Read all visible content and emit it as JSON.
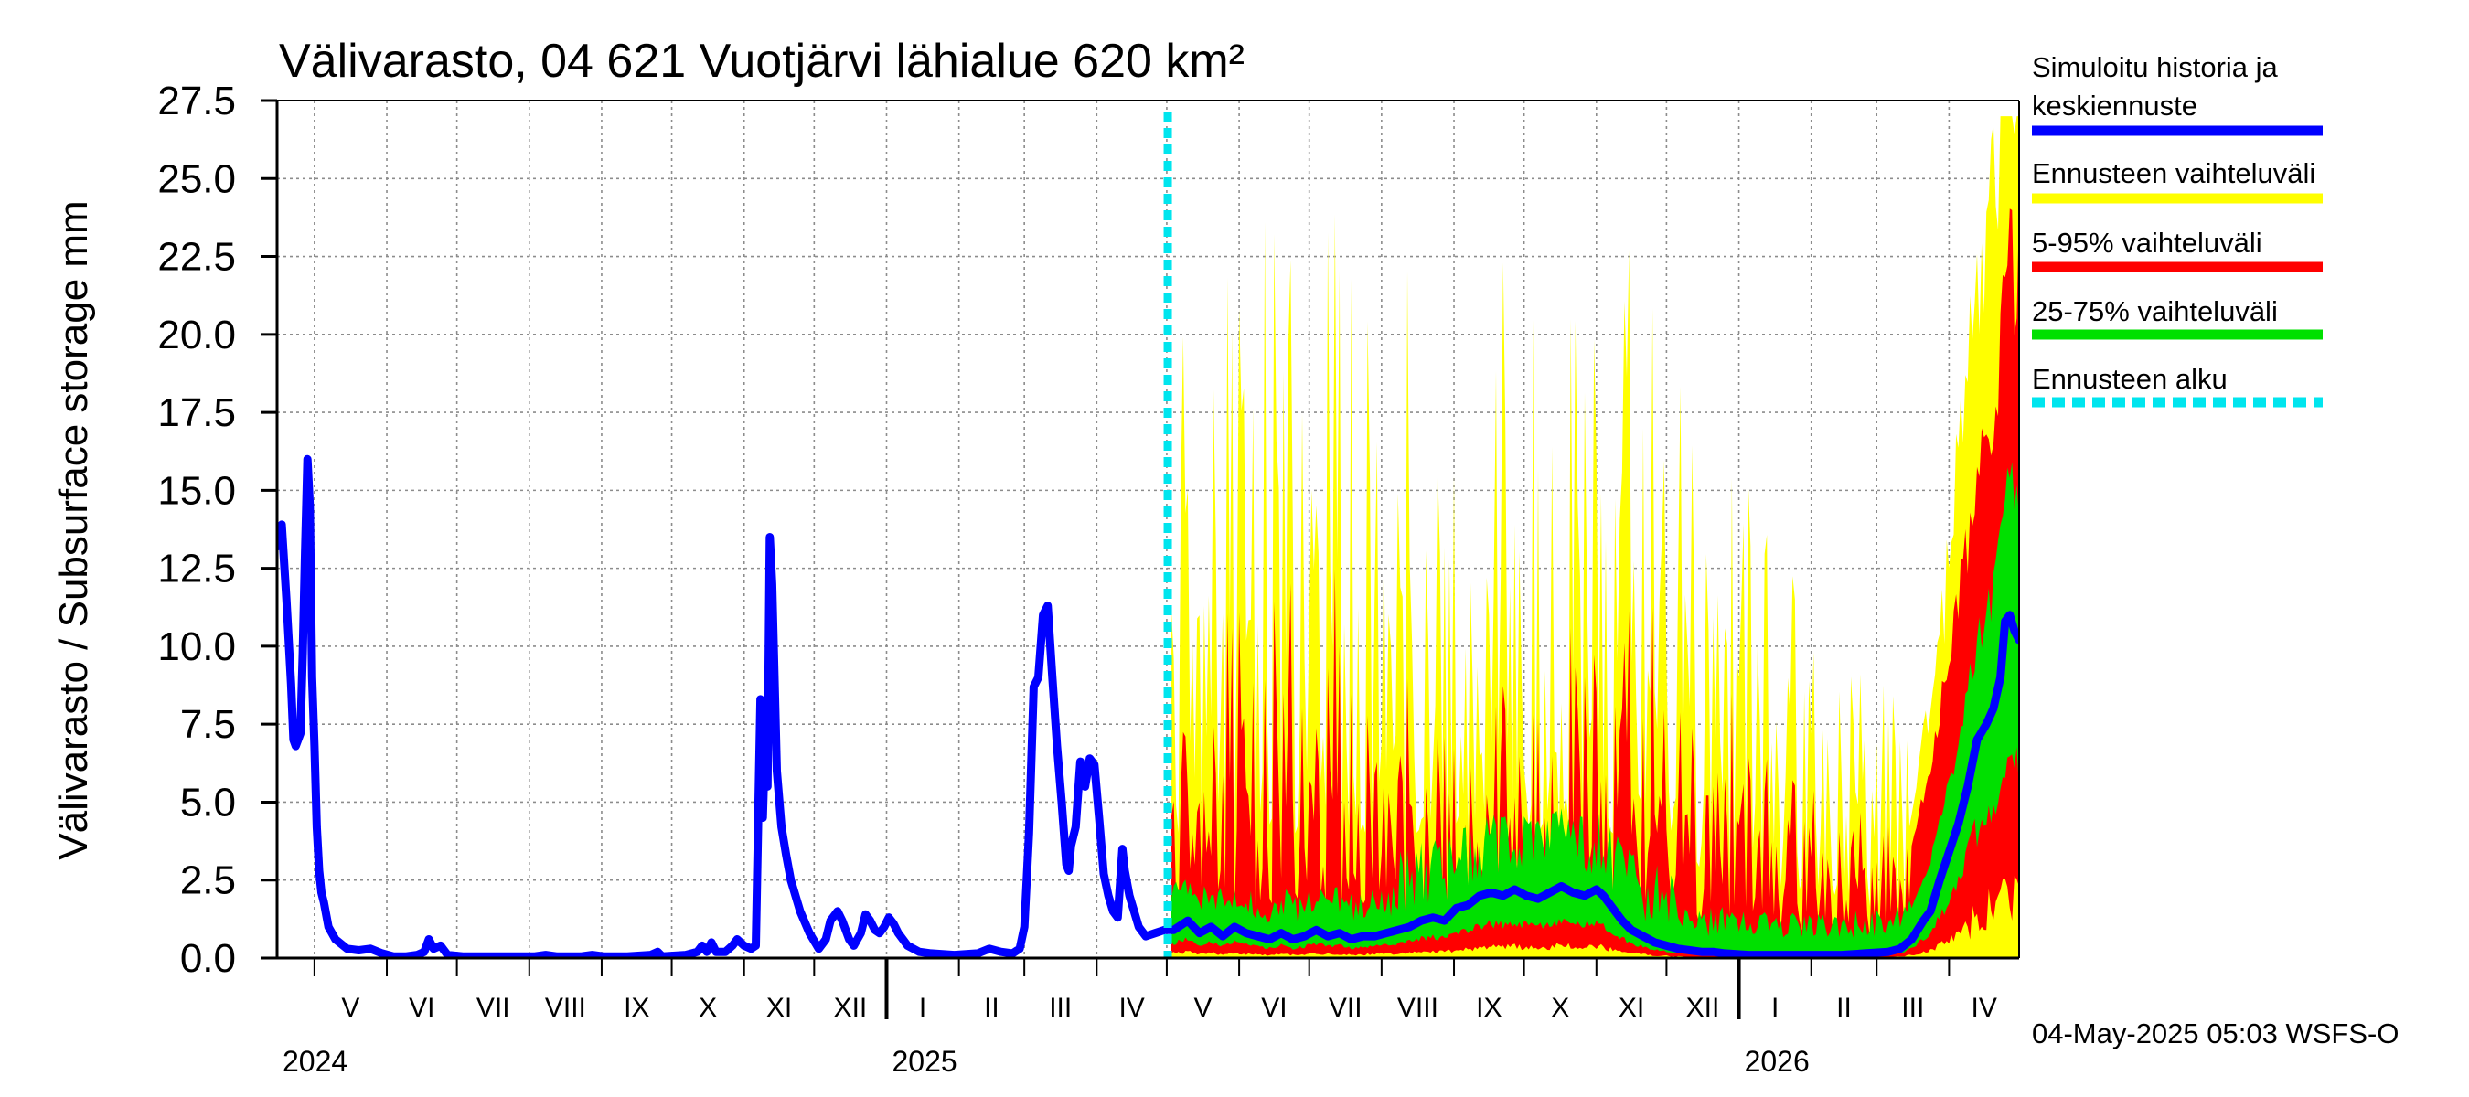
{
  "chart_data": {
    "type": "area",
    "title": "Välivarasto, 04 621 Vuotjärvi lähialue 620 km²",
    "ylabel": "Välivarasto / Subsurface storage  mm",
    "xlabel": "",
    "ylim": [
      0,
      27.5
    ],
    "yticks": [
      "0.0",
      "2.5",
      "5.0",
      "7.5",
      "10.0",
      "12.5",
      "15.0",
      "17.5",
      "20.0",
      "22.5",
      "25.0",
      "27.5"
    ],
    "grid": true,
    "x_start": "2024-04-15",
    "x_end": "2026-05-01",
    "forecast_start_day": 383,
    "months": [
      {
        "label": "V",
        "start": 16,
        "end": 47
      },
      {
        "label": "VI",
        "start": 47,
        "end": 77
      },
      {
        "label": "VII",
        "start": 77,
        "end": 108
      },
      {
        "label": "VIII",
        "start": 108,
        "end": 139
      },
      {
        "label": "IX",
        "start": 139,
        "end": 169
      },
      {
        "label": "X",
        "start": 169,
        "end": 200
      },
      {
        "label": "XI",
        "start": 200,
        "end": 230
      },
      {
        "label": "XII",
        "start": 230,
        "end": 261
      },
      {
        "label": "I",
        "start": 261,
        "end": 292
      },
      {
        "label": "II",
        "start": 292,
        "end": 320
      },
      {
        "label": "III",
        "start": 320,
        "end": 351
      },
      {
        "label": "IV",
        "start": 351,
        "end": 381
      },
      {
        "label": "V",
        "start": 381,
        "end": 412
      },
      {
        "label": "VI",
        "start": 412,
        "end": 442
      },
      {
        "label": "VII",
        "start": 442,
        "end": 473
      },
      {
        "label": "VIII",
        "start": 473,
        "end": 504
      },
      {
        "label": "IX",
        "start": 504,
        "end": 534
      },
      {
        "label": "X",
        "start": 534,
        "end": 565
      },
      {
        "label": "XI",
        "start": 565,
        "end": 595
      },
      {
        "label": "XII",
        "start": 595,
        "end": 626
      },
      {
        "label": "I",
        "start": 626,
        "end": 657
      },
      {
        "label": "II",
        "start": 657,
        "end": 685
      },
      {
        "label": "III",
        "start": 685,
        "end": 716
      },
      {
        "label": "IV",
        "start": 716,
        "end": 746
      }
    ],
    "years": [
      {
        "label": "2024",
        "day": 0
      },
      {
        "label": "2025",
        "day": 261
      },
      {
        "label": "2026",
        "day": 626
      }
    ],
    "year_boundaries": [
      261,
      626
    ],
    "legend": [
      {
        "label": "Simuloitu historia ja",
        "label2": "keskiennuste",
        "color": "#0000ff",
        "style": "solid"
      },
      {
        "label": "Ennusteen vaihteluväli",
        "color": "#ffff00",
        "style": "solid"
      },
      {
        "label": "5-95% vaihteluväli",
        "color": "#ff0000",
        "style": "solid"
      },
      {
        "label": "25-75% vaihteluväli",
        "color": "#00e000",
        "style": "solid"
      },
      {
        "label": "Ennusteen alku",
        "color": "#00e5ee",
        "style": "dashed"
      }
    ],
    "colors": {
      "history": "#0000ff",
      "range_full": "#ffff00",
      "range_5_95": "#ff0000",
      "range_25_75": "#00e000",
      "forecast_start": "#00e5ee"
    },
    "series_history": {
      "name": "Simuloitu historia ja keskiennuste",
      "points": [
        [
          0,
          13.2
        ],
        [
          2,
          13.9
        ],
        [
          4,
          11.5
        ],
        [
          6,
          8.8
        ],
        [
          7,
          7.0
        ],
        [
          8,
          6.8
        ],
        [
          10,
          7.2
        ],
        [
          11,
          9.8
        ],
        [
          12,
          13.0
        ],
        [
          13,
          16.0
        ],
        [
          14,
          14.5
        ],
        [
          15,
          9.0
        ],
        [
          16,
          6.8
        ],
        [
          17,
          4.2
        ],
        [
          18,
          2.8
        ],
        [
          19,
          2.1
        ],
        [
          20,
          1.8
        ],
        [
          22,
          1.0
        ],
        [
          25,
          0.6
        ],
        [
          30,
          0.3
        ],
        [
          35,
          0.25
        ],
        [
          40,
          0.3
        ],
        [
          45,
          0.15
        ],
        [
          50,
          0.05
        ],
        [
          55,
          0.05
        ],
        [
          60,
          0.1
        ],
        [
          63,
          0.2
        ],
        [
          65,
          0.6
        ],
        [
          67,
          0.3
        ],
        [
          70,
          0.4
        ],
        [
          73,
          0.1
        ],
        [
          80,
          0.05
        ],
        [
          90,
          0.05
        ],
        [
          100,
          0.05
        ],
        [
          110,
          0.05
        ],
        [
          115,
          0.1
        ],
        [
          120,
          0.05
        ],
        [
          130,
          0.05
        ],
        [
          135,
          0.1
        ],
        [
          140,
          0.05
        ],
        [
          150,
          0.05
        ],
        [
          160,
          0.1
        ],
        [
          163,
          0.2
        ],
        [
          165,
          0.05
        ],
        [
          175,
          0.1
        ],
        [
          180,
          0.2
        ],
        [
          182,
          0.4
        ],
        [
          184,
          0.2
        ],
        [
          186,
          0.5
        ],
        [
          188,
          0.2
        ],
        [
          192,
          0.2
        ],
        [
          195,
          0.4
        ],
        [
          197,
          0.6
        ],
        [
          200,
          0.4
        ],
        [
          203,
          0.3
        ],
        [
          205,
          0.4
        ],
        [
          207,
          8.3
        ],
        [
          208,
          4.5
        ],
        [
          209,
          7.0
        ],
        [
          210,
          5.5
        ],
        [
          211,
          13.5
        ],
        [
          212,
          12.0
        ],
        [
          214,
          6.0
        ],
        [
          216,
          4.2
        ],
        [
          218,
          3.3
        ],
        [
          220,
          2.5
        ],
        [
          224,
          1.5
        ],
        [
          228,
          0.8
        ],
        [
          232,
          0.3
        ],
        [
          235,
          0.6
        ],
        [
          237,
          1.2
        ],
        [
          240,
          1.5
        ],
        [
          242,
          1.2
        ],
        [
          245,
          0.6
        ],
        [
          247,
          0.4
        ],
        [
          250,
          0.8
        ],
        [
          252,
          1.4
        ],
        [
          254,
          1.2
        ],
        [
          256,
          0.9
        ],
        [
          258,
          0.8
        ],
        [
          260,
          1.0
        ],
        [
          262,
          1.3
        ],
        [
          264,
          1.1
        ],
        [
          266,
          0.8
        ],
        [
          270,
          0.4
        ],
        [
          275,
          0.2
        ],
        [
          280,
          0.15
        ],
        [
          290,
          0.1
        ],
        [
          300,
          0.15
        ],
        [
          305,
          0.3
        ],
        [
          310,
          0.2
        ],
        [
          315,
          0.15
        ],
        [
          318,
          0.3
        ],
        [
          320,
          1.0
        ],
        [
          322,
          4.0
        ],
        [
          324,
          8.7
        ],
        [
          326,
          9.0
        ],
        [
          328,
          11.0
        ],
        [
          330,
          11.3
        ],
        [
          332,
          9.0
        ],
        [
          334,
          6.8
        ],
        [
          336,
          5.0
        ],
        [
          338,
          3.0
        ],
        [
          339,
          2.8
        ],
        [
          340,
          3.6
        ],
        [
          342,
          4.2
        ],
        [
          344,
          6.3
        ],
        [
          346,
          5.5
        ],
        [
          348,
          6.4
        ],
        [
          350,
          6.2
        ],
        [
          352,
          4.5
        ],
        [
          354,
          2.7
        ],
        [
          356,
          2.0
        ],
        [
          358,
          1.5
        ],
        [
          360,
          1.3
        ],
        [
          362,
          3.5
        ],
        [
          363,
          2.8
        ],
        [
          365,
          2.0
        ],
        [
          367,
          1.5
        ],
        [
          369,
          1.0
        ],
        [
          372,
          0.7
        ],
        [
          376,
          0.8
        ],
        [
          380,
          0.9
        ],
        [
          384,
          0.9
        ],
        [
          390,
          1.2
        ],
        [
          395,
          0.8
        ],
        [
          400,
          1.0
        ],
        [
          405,
          0.7
        ],
        [
          410,
          1.0
        ],
        [
          415,
          0.8
        ],
        [
          420,
          0.7
        ],
        [
          425,
          0.6
        ],
        [
          430,
          0.8
        ],
        [
          435,
          0.6
        ],
        [
          440,
          0.7
        ],
        [
          445,
          0.9
        ],
        [
          450,
          0.7
        ],
        [
          455,
          0.8
        ],
        [
          460,
          0.6
        ],
        [
          465,
          0.7
        ],
        [
          470,
          0.7
        ],
        [
          475,
          0.8
        ],
        [
          480,
          0.9
        ],
        [
          485,
          1.0
        ],
        [
          490,
          1.2
        ],
        [
          495,
          1.3
        ],
        [
          500,
          1.2
        ],
        [
          505,
          1.6
        ],
        [
          510,
          1.7
        ],
        [
          515,
          2.0
        ],
        [
          520,
          2.1
        ],
        [
          525,
          2.0
        ],
        [
          530,
          2.2
        ],
        [
          535,
          2.0
        ],
        [
          540,
          1.9
        ],
        [
          545,
          2.1
        ],
        [
          550,
          2.3
        ],
        [
          555,
          2.1
        ],
        [
          560,
          2.0
        ],
        [
          565,
          2.2
        ],
        [
          568,
          2.0
        ],
        [
          572,
          1.6
        ],
        [
          576,
          1.2
        ],
        [
          580,
          0.9
        ],
        [
          585,
          0.7
        ],
        [
          590,
          0.5
        ],
        [
          595,
          0.4
        ],
        [
          600,
          0.3
        ],
        [
          605,
          0.25
        ],
        [
          610,
          0.2
        ],
        [
          615,
          0.2
        ],
        [
          620,
          0.15
        ],
        [
          630,
          0.1
        ],
        [
          640,
          0.1
        ],
        [
          650,
          0.1
        ],
        [
          660,
          0.1
        ],
        [
          670,
          0.1
        ],
        [
          680,
          0.15
        ],
        [
          690,
          0.2
        ],
        [
          695,
          0.3
        ],
        [
          700,
          0.6
        ],
        [
          705,
          1.2
        ],
        [
          708,
          1.5
        ],
        [
          712,
          2.5
        ],
        [
          716,
          3.4
        ],
        [
          720,
          4.3
        ],
        [
          724,
          5.5
        ],
        [
          728,
          7.0
        ],
        [
          732,
          7.5
        ],
        [
          735,
          8.0
        ],
        [
          738,
          9.0
        ],
        [
          740,
          10.8
        ],
        [
          742,
          11.0
        ],
        [
          744,
          10.5
        ],
        [
          746,
          10.2
        ]
      ]
    }
  },
  "footer": {
    "timestamp": "04-May-2025 05:03 WSFS-O"
  }
}
